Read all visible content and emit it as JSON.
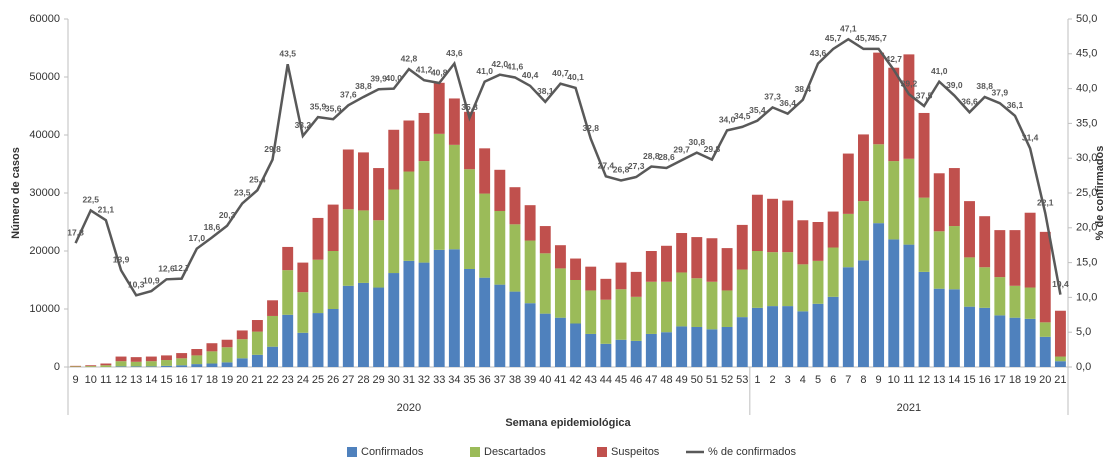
{
  "chart_data": {
    "type": "bar",
    "y_label": "Número de casos",
    "y2_label": "% de confirmados",
    "x_label": "Semana epidemiológica",
    "categories": [
      "9",
      "10",
      "11",
      "12",
      "13",
      "14",
      "15",
      "16",
      "17",
      "18",
      "19",
      "20",
      "21",
      "22",
      "23",
      "24",
      "25",
      "26",
      "27",
      "28",
      "29",
      "30",
      "31",
      "32",
      "33",
      "34",
      "35",
      "36",
      "37",
      "38",
      "39",
      "40",
      "41",
      "42",
      "43",
      "44",
      "45",
      "46",
      "47",
      "48",
      "49",
      "50",
      "51",
      "52",
      "53",
      "1",
      "2",
      "3",
      "4",
      "5",
      "6",
      "7",
      "8",
      "9",
      "10",
      "11",
      "12",
      "13",
      "14",
      "15",
      "16",
      "17",
      "18",
      "19",
      "20",
      "21"
    ],
    "group_labels": [
      "2020",
      "2021"
    ],
    "group_sizes": [
      45,
      21
    ],
    "ylim": [
      0,
      60000
    ],
    "yticks": [
      0,
      10000,
      20000,
      30000,
      40000,
      50000,
      60000
    ],
    "y2lim": [
      0,
      50
    ],
    "y2ticks": [
      {
        "value": 0,
        "label": "0,0"
      },
      {
        "value": 5,
        "label": "5,0"
      },
      {
        "value": 10,
        "label": "10,0"
      },
      {
        "value": 15,
        "label": "15,0"
      },
      {
        "value": 20,
        "label": "20,0"
      },
      {
        "value": 25,
        "label": "25,0"
      },
      {
        "value": 30,
        "label": "30,0"
      },
      {
        "value": 35,
        "label": "35,0"
      },
      {
        "value": 40,
        "label": "40,0"
      },
      {
        "value": 45,
        "label": "45,0"
      },
      {
        "value": 50,
        "label": "50,0"
      }
    ],
    "series": [
      {
        "name": "Confirmados",
        "type": "bar",
        "color": "#4f81bd",
        "values": [
          0,
          0,
          0,
          100,
          100,
          100,
          200,
          300,
          500,
          600,
          800,
          1500,
          2100,
          3500,
          9000,
          5900,
          9300,
          10000,
          14000,
          14500,
          13700,
          16200,
          18300,
          18000,
          20200,
          20300,
          16900,
          15400,
          14200,
          13000,
          11000,
          9200,
          8500,
          7500,
          5700,
          4000,
          4700,
          4500,
          5700,
          6000,
          7000,
          6900,
          6500,
          6900,
          8600,
          10200,
          10500,
          10500,
          9600,
          10900,
          12100,
          17200,
          18400,
          24800,
          22000,
          21100,
          16400,
          13500,
          13400,
          10400,
          10200,
          8900,
          8500,
          8300,
          5200,
          1000
        ]
      },
      {
        "name": "Descartados",
        "type": "bar",
        "color": "#9bbb59",
        "values": [
          100,
          150,
          300,
          900,
          800,
          900,
          1000,
          1200,
          1500,
          2100,
          2600,
          3300,
          4000,
          5300,
          7700,
          7000,
          9200,
          10000,
          13200,
          12500,
          11600,
          14400,
          15400,
          17500,
          20000,
          18000,
          17200,
          14500,
          12700,
          11600,
          10800,
          10400,
          8500,
          7500,
          7500,
          7600,
          8700,
          7600,
          9000,
          8700,
          9300,
          8400,
          8200,
          6300,
          8200,
          9800,
          9300,
          9300,
          8100,
          7400,
          8500,
          9200,
          10200,
          13600,
          13500,
          14800,
          12800,
          9900,
          10900,
          8500,
          7000,
          6600,
          5500,
          5400,
          2500,
          800
        ]
      },
      {
        "name": "Suspeitos",
        "type": "bar",
        "color": "#c0504d",
        "values": [
          100,
          150,
          300,
          800,
          800,
          800,
          800,
          900,
          1100,
          1400,
          1300,
          1500,
          2000,
          2700,
          4000,
          5100,
          7200,
          8000,
          10300,
          10000,
          9000,
          10300,
          8800,
          8300,
          8800,
          8000,
          9900,
          7800,
          7100,
          6400,
          6100,
          4700,
          4000,
          3700,
          4100,
          3600,
          4600,
          4300,
          5300,
          6200,
          6800,
          7100,
          7500,
          7300,
          7700,
          9700,
          9200,
          8900,
          7600,
          6700,
          6200,
          10400,
          11500,
          15800,
          16100,
          18000,
          14600,
          10000,
          10000,
          9700,
          8800,
          8100,
          9600,
          12900,
          15600,
          7900
        ]
      },
      {
        "name": "% de confirmados",
        "type": "line",
        "axis": "y2",
        "color": "#595959",
        "values": [
          17.8,
          22.5,
          21.1,
          13.9,
          10.3,
          10.9,
          12.6,
          12.7,
          17.0,
          18.6,
          20.3,
          23.5,
          25.4,
          29.8,
          43.5,
          33.2,
          35.9,
          35.6,
          37.6,
          38.8,
          39.9,
          40.0,
          42.8,
          41.2,
          40.8,
          43.6,
          35.8,
          41.0,
          42.0,
          41.6,
          40.4,
          38.1,
          40.7,
          40.1,
          32.8,
          27.4,
          26.8,
          27.3,
          28.8,
          28.6,
          29.7,
          30.8,
          29.8,
          34.0,
          34.5,
          35.4,
          37.3,
          36.4,
          38.4,
          43.6,
          45.7,
          47.1,
          45.7,
          45.7,
          42.7,
          39.2,
          37.5,
          41.0,
          39.0,
          36.6,
          38.8,
          37.9,
          36.1,
          31.4,
          22.1,
          10.4
        ],
        "value_labels": [
          "17,8",
          "22,5",
          "21,1",
          "13,9",
          "10,3",
          "10,9",
          "12,6",
          "12,7",
          "17,0",
          "18,6",
          "20,3",
          "23,5",
          "25,4",
          "29,8",
          "43,5",
          "33,2",
          "35,9",
          "35,6",
          "37,6",
          "38,8",
          "39,9",
          "40,0",
          "42,8",
          "41,2",
          "40,8",
          "43,6",
          "35,8",
          "41,0",
          "42,0",
          "41,6",
          "40,4",
          "38,1",
          "40,7",
          "40,1",
          "32,8",
          "27,4",
          "26,8",
          "27,3",
          "28,8",
          "28,6",
          "29,7",
          "30,8",
          "29,8",
          "34,0",
          "34,5",
          "35,4",
          "37,3",
          "36,4",
          "38,4",
          "43,6",
          "45,7",
          "47,1",
          "45,7",
          "45,7",
          "42,7",
          "39,2",
          "37,5",
          "41,0",
          "39,0",
          "36,6",
          "38,8",
          "37,9",
          "36,1",
          "31,4",
          "22,1",
          "10,4"
        ]
      }
    ]
  }
}
